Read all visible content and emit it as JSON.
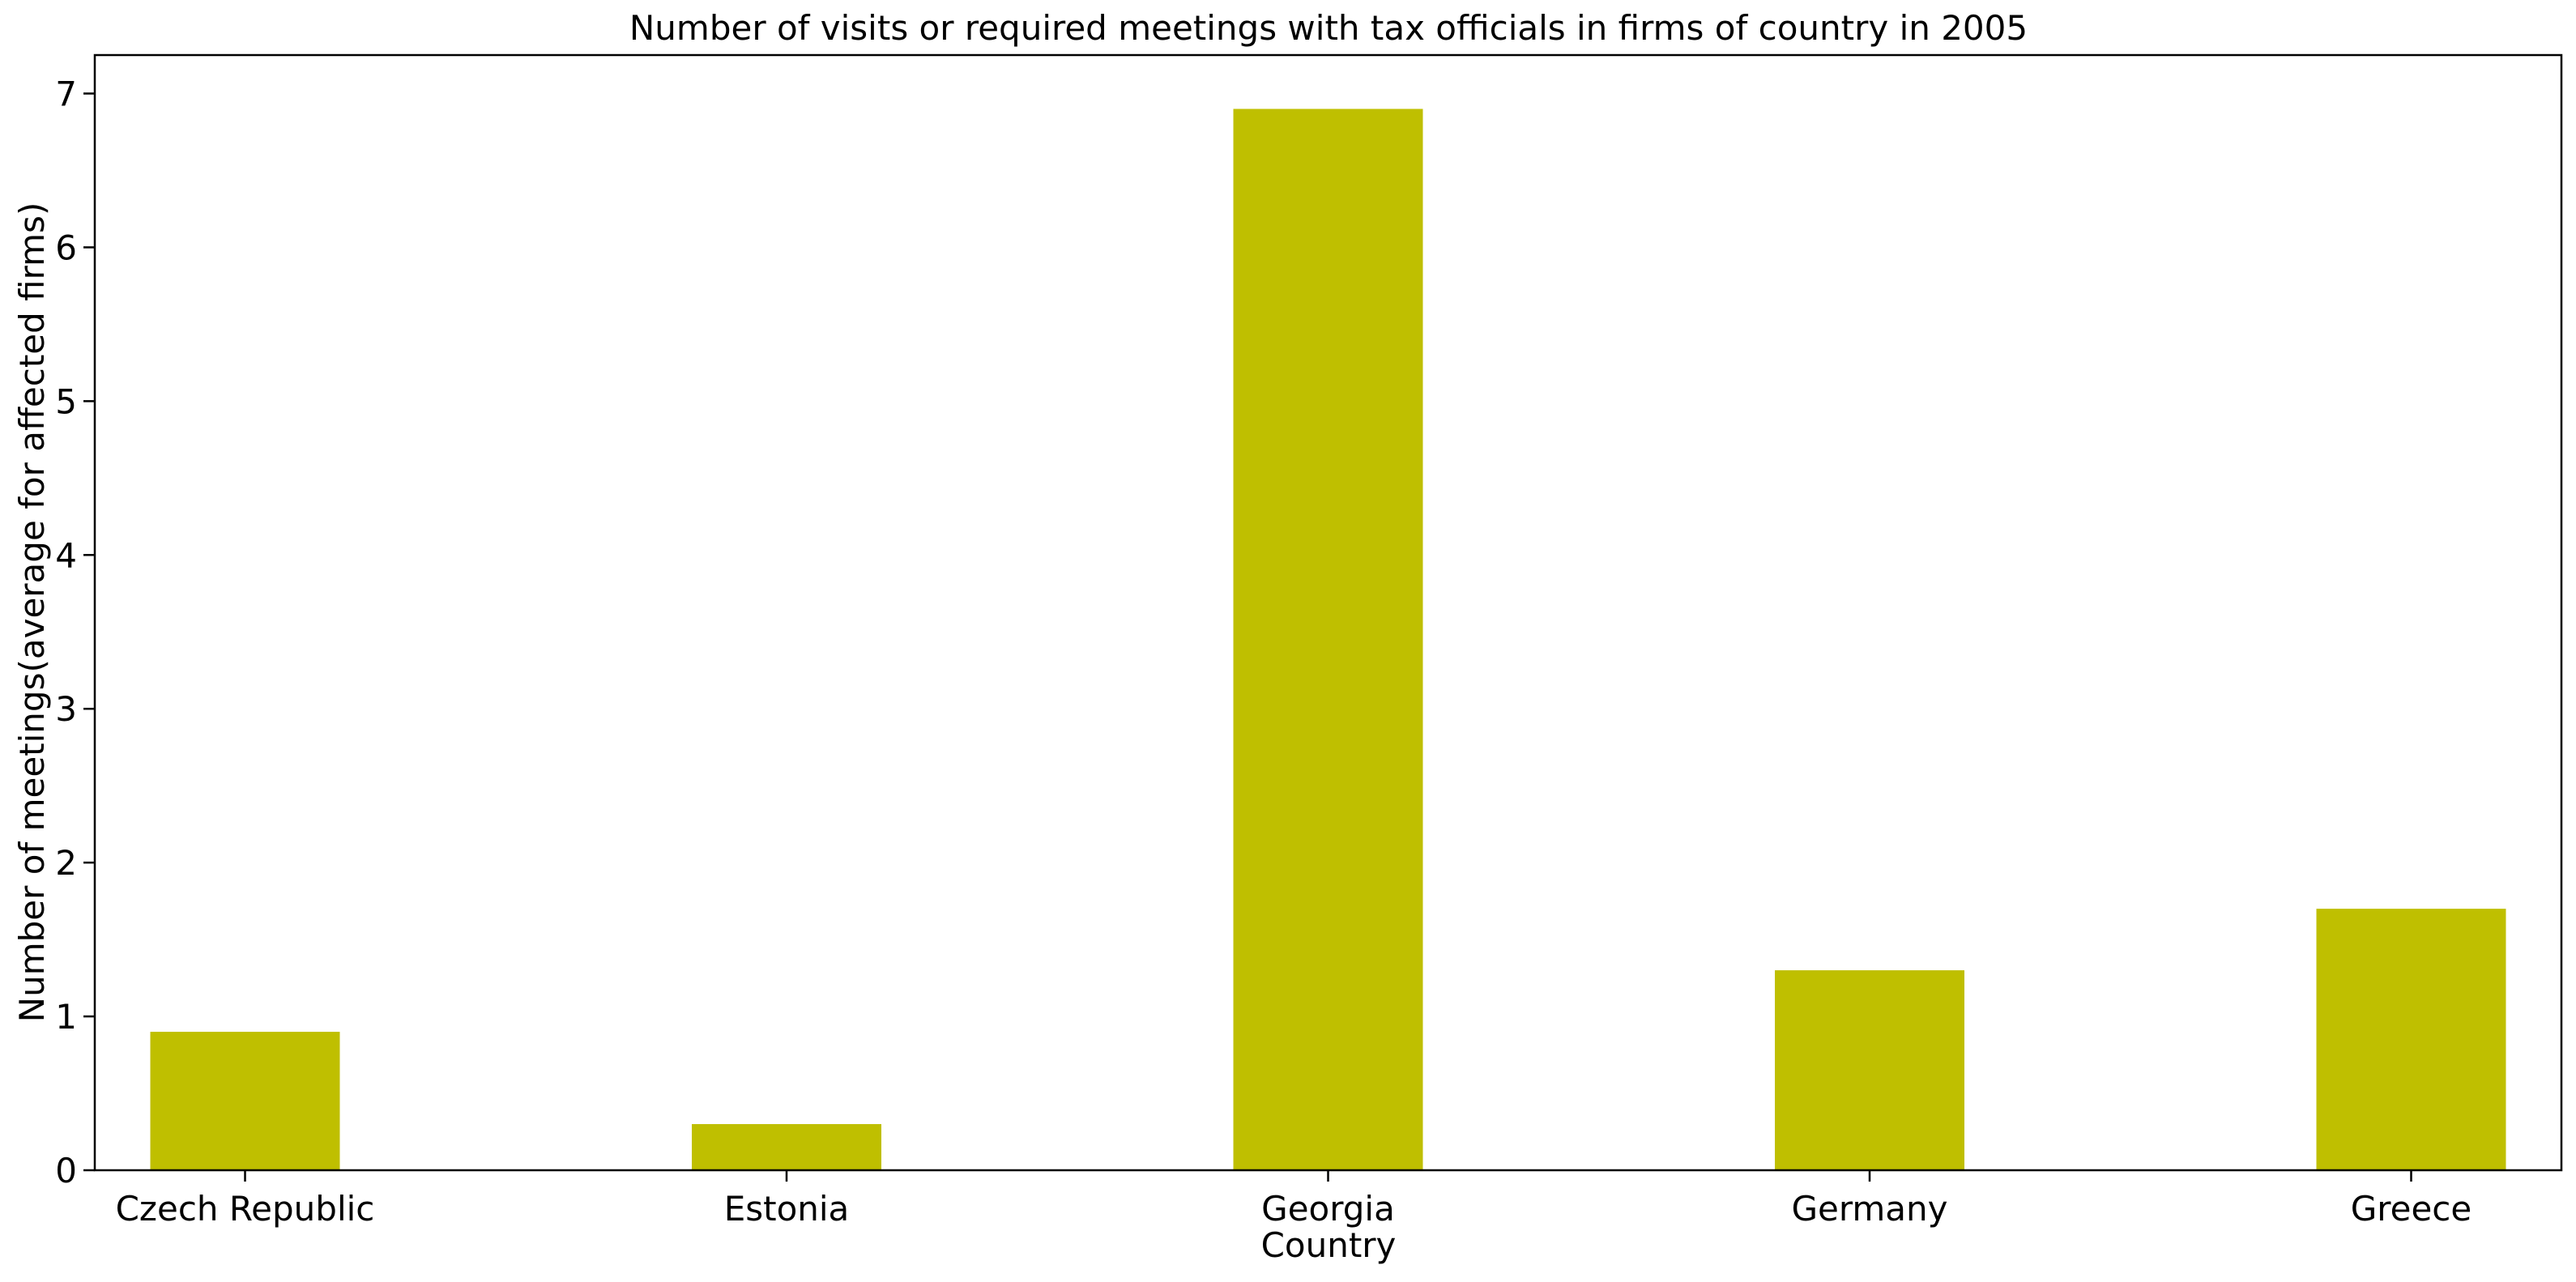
{
  "chart_data": {
    "type": "bar",
    "title": "Number of visits or required meetings with tax officials in firms of country in 2005",
    "xlabel": "Country",
    "ylabel": "Number of meetings(average for affected firms)",
    "categories": [
      "Czech Republic",
      "Estonia",
      "Georgia",
      "Germany",
      "Greece"
    ],
    "values": [
      0.9,
      0.3,
      6.9,
      1.3,
      1.7
    ],
    "ylim": [
      0,
      7.25
    ],
    "yticks": [
      0,
      1,
      2,
      3,
      4,
      5,
      6,
      7
    ],
    "bar_color": "#bfbf00",
    "grid": false,
    "legend": "none"
  }
}
